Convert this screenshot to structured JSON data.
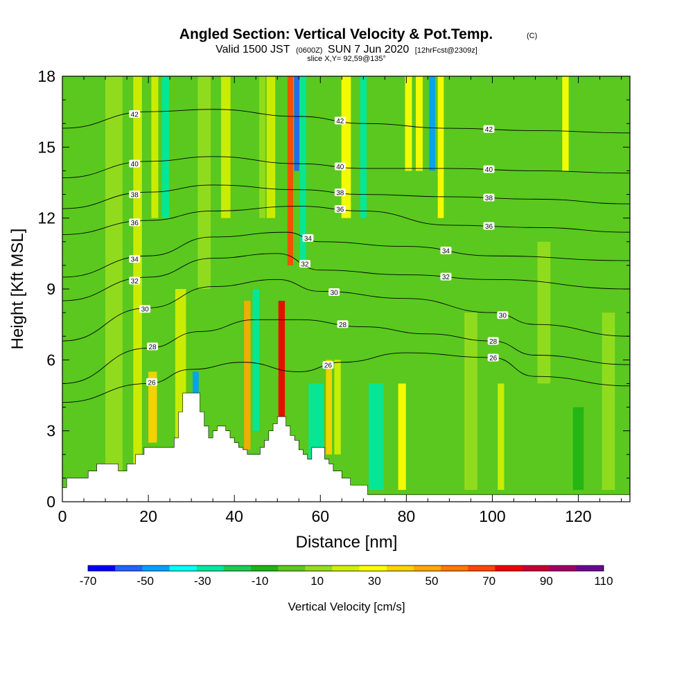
{
  "chart_data": {
    "type": "heatmap",
    "title": "Angled Section: Vertical Velocity & Pot.Temp.",
    "title_mark": "(C)",
    "subtitle": {
      "valid": "Valid 1500 JST",
      "zulu": "(0600Z)",
      "date": "SUN 7 Jun 2020",
      "forecast": "[12hrFcst@2309z]"
    },
    "slice_label": "slice X,Y= 92,59@135°",
    "xlabel": "Distance [nm]",
    "ylabel": "Height [Kft MSL]",
    "xlim": [
      0,
      132
    ],
    "ylim": [
      0,
      18
    ],
    "x_ticks": [
      0,
      20,
      40,
      60,
      80,
      100,
      120
    ],
    "y_ticks": [
      0,
      3,
      6,
      9,
      12,
      15,
      18
    ],
    "colorbar": {
      "label": "Vertical Velocity [cm/s]",
      "tick_labels": [
        "-70",
        "-50",
        "-30",
        "-10",
        "10",
        "30",
        "50",
        "70",
        "90",
        "110"
      ],
      "levels": [
        -70,
        -60,
        -50,
        -40,
        -30,
        -20,
        -10,
        0,
        10,
        20,
        30,
        40,
        50,
        60,
        70,
        80,
        90,
        100,
        110
      ],
      "colors": [
        "#0000ff",
        "#1e64ff",
        "#00a0ff",
        "#00ffff",
        "#00e8a0",
        "#1ecc50",
        "#1eb414",
        "#5ac81e",
        "#96dc1e",
        "#d2f000",
        "#ffff00",
        "#ffd200",
        "#ffaa00",
        "#ff7800",
        "#ff4600",
        "#f00000",
        "#c80032",
        "#a00064",
        "#6e0096"
      ]
    },
    "velocity_columns": [
      {
        "x": 2,
        "w": 3,
        "v": 5,
        "y0": 0,
        "y1": 18
      },
      {
        "x": 12,
        "w": 4,
        "v": 10,
        "y0": 0,
        "y1": 18
      },
      {
        "x": 17.5,
        "w": 2,
        "v": 22,
        "y0": 0,
        "y1": 18
      },
      {
        "x": 21,
        "w": 2,
        "v": 45,
        "y0": 2.5,
        "y1": 5.5
      },
      {
        "x": 21.5,
        "w": 1.6,
        "v": 28,
        "y0": 12,
        "y1": 18
      },
      {
        "x": 24,
        "w": 1.6,
        "v": -28,
        "y0": 12,
        "y1": 18
      },
      {
        "x": 27.5,
        "w": 2.5,
        "v": 25,
        "y0": 2.5,
        "y1": 9
      },
      {
        "x": 31,
        "w": 1.4,
        "v": -48,
        "y0": 3.5,
        "y1": 5.5
      },
      {
        "x": 33,
        "w": 3,
        "v": 15,
        "y0": 9,
        "y1": 18
      },
      {
        "x": 38,
        "w": 2.2,
        "v": 22,
        "y0": 12,
        "y1": 18
      },
      {
        "x": 43,
        "w": 1.5,
        "v": 58,
        "y0": 2.2,
        "y1": 8.5
      },
      {
        "x": 45,
        "w": 1.5,
        "v": -25,
        "y0": 3,
        "y1": 9
      },
      {
        "x": 46.5,
        "w": 1.4,
        "v": 15,
        "y0": 12,
        "y1": 18
      },
      {
        "x": 48.5,
        "w": 2,
        "v": 20,
        "y0": 12,
        "y1": 18
      },
      {
        "x": 51,
        "w": 1.5,
        "v": 88,
        "y0": 3.5,
        "y1": 8.5
      },
      {
        "x": 53,
        "w": 1.3,
        "v": 72,
        "y0": 10,
        "y1": 18
      },
      {
        "x": 54.5,
        "w": 1.2,
        "v": -58,
        "y0": 14,
        "y1": 18
      },
      {
        "x": 56,
        "w": 1.4,
        "v": -25,
        "y0": 10,
        "y1": 18
      },
      {
        "x": 59,
        "w": 3.5,
        "v": -22,
        "y0": 1,
        "y1": 5
      },
      {
        "x": 62,
        "w": 1.4,
        "v": 40,
        "y0": 2,
        "y1": 6
      },
      {
        "x": 64,
        "w": 1.5,
        "v": 28,
        "y0": 2,
        "y1": 6
      },
      {
        "x": 66,
        "w": 2.2,
        "v": 30,
        "y0": 12,
        "y1": 18
      },
      {
        "x": 70,
        "w": 1.5,
        "v": -28,
        "y0": 12,
        "y1": 18
      },
      {
        "x": 73,
        "w": 3.5,
        "v": -25,
        "y0": 0.5,
        "y1": 5
      },
      {
        "x": 79,
        "w": 1.8,
        "v": 32,
        "y0": 0.5,
        "y1": 5
      },
      {
        "x": 80.5,
        "w": 1.6,
        "v": 35,
        "y0": 14,
        "y1": 18
      },
      {
        "x": 83,
        "w": 1.6,
        "v": 30,
        "y0": 14,
        "y1": 18
      },
      {
        "x": 86,
        "w": 1.4,
        "v": -45,
        "y0": 14,
        "y1": 18
      },
      {
        "x": 88,
        "w": 1.4,
        "v": 30,
        "y0": 12,
        "y1": 18
      },
      {
        "x": 95,
        "w": 3,
        "v": 18,
        "y0": 0.5,
        "y1": 8
      },
      {
        "x": 102,
        "w": 1.5,
        "v": 25,
        "y0": 0.5,
        "y1": 5
      },
      {
        "x": 112,
        "w": 3,
        "v": 15,
        "y0": 5,
        "y1": 11
      },
      {
        "x": 117,
        "w": 1.5,
        "v": 30,
        "y0": 14,
        "y1": 18
      },
      {
        "x": 120,
        "w": 2.5,
        "v": -5,
        "y0": 0.5,
        "y1": 4
      },
      {
        "x": 127,
        "w": 3,
        "v": 18,
        "y0": 0.5,
        "y1": 8
      }
    ],
    "terrain": [
      [
        0,
        0.6
      ],
      [
        1,
        1.0
      ],
      [
        6,
        1.3
      ],
      [
        8,
        1.6
      ],
      [
        13,
        1.3
      ],
      [
        15,
        1.6
      ],
      [
        17,
        2.0
      ],
      [
        19,
        2.3
      ],
      [
        25,
        2.3
      ],
      [
        26,
        2.7
      ],
      [
        27,
        3.8
      ],
      [
        28,
        4.6
      ],
      [
        31,
        4.6
      ],
      [
        32,
        3.8
      ],
      [
        33,
        3.2
      ],
      [
        34,
        2.7
      ],
      [
        35,
        3.0
      ],
      [
        36,
        3.2
      ],
      [
        38,
        3.0
      ],
      [
        39,
        2.7
      ],
      [
        40,
        2.5
      ],
      [
        41,
        2.3
      ],
      [
        42,
        2.2
      ],
      [
        43,
        2.0
      ],
      [
        45,
        2.0
      ],
      [
        46,
        2.3
      ],
      [
        47,
        2.6
      ],
      [
        48,
        3.0
      ],
      [
        49,
        3.3
      ],
      [
        50,
        3.6
      ],
      [
        51,
        3.6
      ],
      [
        52,
        3.2
      ],
      [
        53,
        2.8
      ],
      [
        54,
        2.6
      ],
      [
        55,
        2.2
      ],
      [
        56,
        2.0
      ],
      [
        57,
        1.8
      ],
      [
        58,
        2.3
      ],
      [
        60,
        2.3
      ],
      [
        61,
        1.8
      ],
      [
        62,
        1.6
      ],
      [
        63,
        1.3
      ],
      [
        65,
        1.0
      ],
      [
        67,
        0.7
      ],
      [
        71,
        0.3
      ],
      [
        132,
        0.3
      ]
    ],
    "theta_contours": [
      {
        "label": "26",
        "y_at": [
          [
            0,
            4.2
          ],
          [
            20,
            5.0
          ],
          [
            30,
            5.6
          ],
          [
            42,
            5.9
          ],
          [
            55,
            5.5
          ],
          [
            65,
            5.9
          ],
          [
            80,
            6.3
          ],
          [
            100,
            6.1
          ],
          [
            110,
            5.3
          ],
          [
            132,
            4.9
          ]
        ]
      },
      {
        "label": "28",
        "y_at": [
          [
            0,
            5.0
          ],
          [
            20,
            6.5
          ],
          [
            32,
            7.2
          ],
          [
            45,
            7.7
          ],
          [
            55,
            7.7
          ],
          [
            70,
            7.4
          ],
          [
            85,
            7.1
          ],
          [
            100,
            6.8
          ],
          [
            110,
            6.2
          ],
          [
            132,
            5.8
          ]
        ]
      },
      {
        "label": "30",
        "y_at": [
          [
            0,
            6.8
          ],
          [
            20,
            8.2
          ],
          [
            35,
            9.1
          ],
          [
            50,
            9.4
          ],
          [
            60,
            8.9
          ],
          [
            80,
            8.6
          ],
          [
            100,
            8.0
          ],
          [
            110,
            7.5
          ],
          [
            132,
            7.0
          ]
        ]
      },
      {
        "label": "32",
        "y_at": [
          [
            0,
            8.5
          ],
          [
            20,
            9.5
          ],
          [
            35,
            10.3
          ],
          [
            50,
            10.5
          ],
          [
            60,
            9.8
          ],
          [
            80,
            9.6
          ],
          [
            100,
            9.4
          ],
          [
            132,
            9.0
          ]
        ]
      },
      {
        "label": "34",
        "y_at": [
          [
            0,
            9.5
          ],
          [
            20,
            10.4
          ],
          [
            35,
            11.2
          ],
          [
            52,
            11.4
          ],
          [
            60,
            11.0
          ],
          [
            80,
            10.8
          ],
          [
            100,
            10.4
          ],
          [
            132,
            10.2
          ]
        ]
      },
      {
        "label": "36",
        "y_at": [
          [
            0,
            11.3
          ],
          [
            20,
            11.9
          ],
          [
            35,
            12.3
          ],
          [
            55,
            12.5
          ],
          [
            70,
            12.3
          ],
          [
            90,
            11.7
          ],
          [
            110,
            11.6
          ],
          [
            132,
            11.4
          ]
        ]
      },
      {
        "label": "38",
        "y_at": [
          [
            0,
            12.4
          ],
          [
            20,
            13.1
          ],
          [
            35,
            13.4
          ],
          [
            55,
            13.2
          ],
          [
            70,
            13.0
          ],
          [
            90,
            12.9
          ],
          [
            110,
            12.8
          ],
          [
            132,
            12.6
          ]
        ]
      },
      {
        "label": "40",
        "y_at": [
          [
            0,
            13.7
          ],
          [
            20,
            14.4
          ],
          [
            35,
            14.6
          ],
          [
            55,
            14.3
          ],
          [
            70,
            14.1
          ],
          [
            90,
            14.1
          ],
          [
            110,
            14.0
          ],
          [
            132,
            13.9
          ]
        ]
      },
      {
        "label": "42",
        "y_at": [
          [
            0,
            15.8
          ],
          [
            20,
            16.5
          ],
          [
            35,
            16.6
          ],
          [
            55,
            16.3
          ],
          [
            70,
            16.0
          ],
          [
            90,
            15.8
          ],
          [
            110,
            15.7
          ],
          [
            132,
            15.6
          ]
        ]
      }
    ]
  }
}
